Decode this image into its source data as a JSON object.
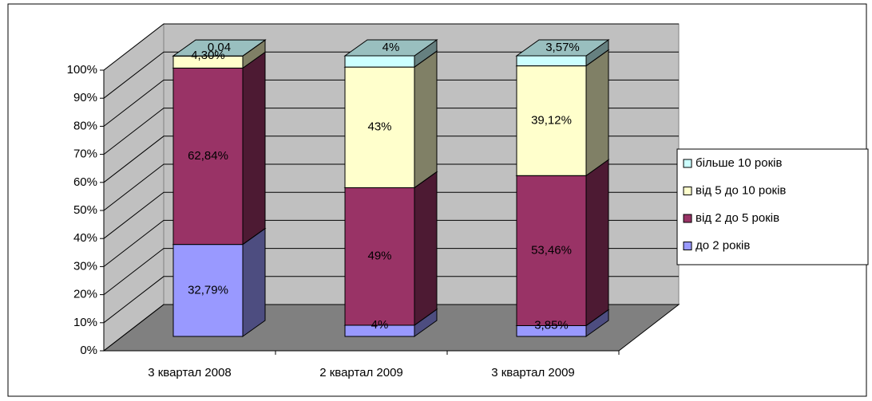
{
  "chart_data": {
    "type": "bar3d_stacked",
    "categories": [
      "3 квартал 2008",
      "2 квартал 2009",
      "3 квартал 2009"
    ],
    "series": [
      {
        "name": "до 2 років",
        "color": "#9999ff",
        "values": [
          32.79,
          4,
          3.85
        ],
        "value_labels": [
          "32,79%",
          "4%",
          "3,85%"
        ]
      },
      {
        "name": "від 2 до 5 років",
        "color": "#993366",
        "values": [
          62.84,
          49,
          53.46
        ],
        "value_labels": [
          "62,84%",
          "49%",
          "53,46%"
        ]
      },
      {
        "name": "від 5 до 10 років",
        "color": "#ffffcc",
        "values": [
          4.3,
          43,
          39.12
        ],
        "value_labels": [
          "4,30%",
          "43%",
          "39,12%"
        ]
      },
      {
        "name": "більше 10 років",
        "color": "#ccffff",
        "values": [
          0.04,
          4,
          3.57
        ],
        "value_labels": [
          "0,04",
          "4%",
          "3,57%"
        ]
      }
    ],
    "ylim": [
      0,
      100
    ],
    "yticks": [
      {
        "value": 0,
        "label": "0%"
      },
      {
        "value": 10,
        "label": "10%"
      },
      {
        "value": 20,
        "label": "20%"
      },
      {
        "value": 30,
        "label": "30%"
      },
      {
        "value": 40,
        "label": "40%"
      },
      {
        "value": 50,
        "label": "50%"
      },
      {
        "value": 60,
        "label": "60%"
      },
      {
        "value": 70,
        "label": "70%"
      },
      {
        "value": 80,
        "label": "80%"
      },
      {
        "value": 90,
        "label": "90%"
      },
      {
        "value": 100,
        "label": "100%"
      }
    ],
    "grid": true,
    "legend": "right"
  }
}
